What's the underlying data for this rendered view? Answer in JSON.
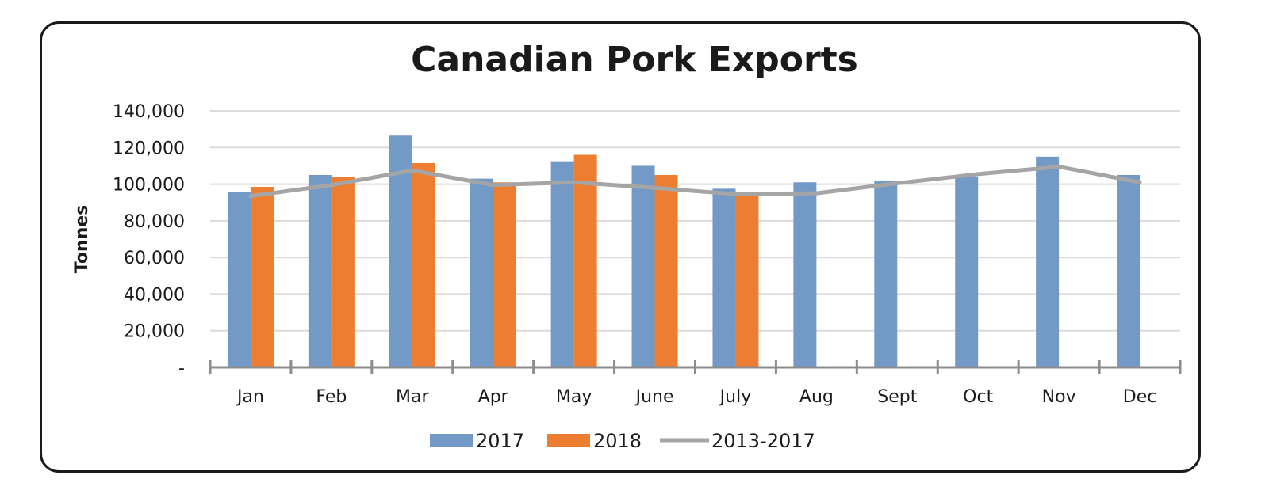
{
  "chart_data": {
    "type": "bar",
    "title": "Canadian Pork Exports",
    "xlabel": "",
    "ylabel": "Tonnes",
    "categories": [
      "Jan",
      "Feb",
      "Mar",
      "Apr",
      "May",
      "June",
      "July",
      "Aug",
      "Sept",
      "Oct",
      "Nov",
      "Dec"
    ],
    "ylim": [
      0,
      140000
    ],
    "yticks": [
      0,
      20000,
      40000,
      60000,
      80000,
      100000,
      120000,
      140000
    ],
    "ytick_labels": [
      "-",
      "20,000",
      "40,000",
      "60,000",
      "80,000",
      "100,000",
      "120,000",
      "140,000"
    ],
    "grid": true,
    "legend_position": "bottom",
    "series": [
      {
        "name": "2017",
        "kind": "bar",
        "color": "#7399c6",
        "values": [
          95500,
          105000,
          126500,
          103000,
          112500,
          110000,
          97500,
          101000,
          102000,
          104000,
          115000,
          105000
        ]
      },
      {
        "name": "2018",
        "kind": "bar",
        "color": "#ed7d31",
        "values": [
          98500,
          104000,
          111500,
          101000,
          116000,
          105000,
          95000,
          null,
          null,
          null,
          null,
          null
        ]
      },
      {
        "name": "2013-2017",
        "kind": "line",
        "color": "#a5a5a5",
        "values": [
          93500,
          99500,
          107500,
          99500,
          101000,
          98000,
          94500,
          95000,
          100500,
          105500,
          109500,
          101000
        ]
      }
    ]
  }
}
